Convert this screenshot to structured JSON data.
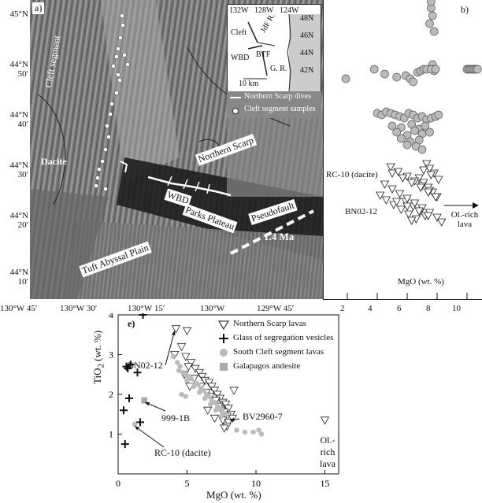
{
  "panel_a": {
    "label": "a)",
    "lat_ticks": [
      "45°N",
      "44°N 50′",
      "44°N 40′",
      "44°N 30′",
      "44°N 20′",
      "44°N 10′"
    ],
    "lon_ticks": [
      "130°W 45′",
      "130°W 30′",
      "130°W 15′",
      "130°W",
      "129°W 45′"
    ],
    "features": {
      "cleft": "Cleft segment",
      "dacite": "Dacite",
      "northern_scarp": "Northern Scarp",
      "wbd": "WBD",
      "pseudofault": "Pseudofault",
      "parks": "Parks Plateau",
      "age": "1.4 Ma",
      "tuft": "Tuft Abyssal Plain"
    },
    "inset": {
      "lon_ticks": [
        "132W",
        "128W",
        "124W"
      ],
      "lat_ticks": [
        "48N",
        "46N",
        "44N",
        "42N"
      ],
      "labels": {
        "cleft": "Cleft",
        "jdf": "JdF R.",
        "btf": "BTF",
        "wbd": "WBD",
        "gr": "G. R."
      },
      "scale": "10 km"
    },
    "legend": {
      "dives": "Northern Scarp dives",
      "samples": "Cleft segment samples"
    }
  },
  "panel_b": {
    "label": "b)",
    "xlabel": "MgO (wt. %)",
    "xticks": [
      "2",
      "4",
      "6",
      "8",
      "10"
    ],
    "annotations": {
      "rc10": "RC-10 (dacite)",
      "bn02": "BN02-12",
      "olrich": "Ol.-rich lava"
    }
  },
  "panel_e": {
    "label": "e)",
    "legend": [
      {
        "marker": "triangle",
        "text": "Northern Scarp lavas"
      },
      {
        "marker": "plus",
        "text": "Glass of segregation vesicles"
      },
      {
        "marker": "circle",
        "text": "South Cleft segment lavas"
      },
      {
        "marker": "square",
        "text": "Galapagos andesite"
      }
    ],
    "annotations": {
      "bn02": "BN02-12",
      "bv": "BV2960-7",
      "s999": "999-1B",
      "rc10": "RC-10 (dacite)",
      "olrich1": "Ol.-rich",
      "olrich2": "lava"
    }
  },
  "chart_data": [
    {
      "type": "scatter",
      "panel": "b",
      "xlabel": "MgO (wt. %)",
      "xlim": [
        1,
        11
      ],
      "series": [
        {
          "marker": "circle",
          "values_x": [
            7.6,
            7.7,
            7.5,
            7.8,
            7.6,
            7.7,
            7.7,
            7.8,
            1.9,
            3.8,
            4.5,
            5.3,
            5.9,
            6.2,
            6.4,
            6.7,
            6.9,
            7.1,
            7.3,
            7.6,
            7.9,
            10.0,
            10.1,
            10.2,
            10.3,
            10.4,
            10.5,
            10.6,
            10.7,
            4.0,
            4.3,
            4.6,
            4.9,
            5.2,
            5.5,
            5.8,
            6.1,
            6.4,
            6.7,
            7.0,
            7.3,
            7.6,
            7.9,
            8.1,
            5.0,
            5.6,
            6.3,
            6.8,
            7.2,
            5.3,
            6.0,
            6.5,
            7.0,
            7.5,
            5.6,
            6.2,
            6.8,
            6.0,
            6.6,
            7.0
          ]
        },
        {
          "marker": "triangle",
          "values_x": [
            7.3,
            7.5,
            7.8,
            6.8,
            7.1,
            7.4,
            7.7,
            8.0,
            5.9,
            6.4,
            6.9,
            7.2,
            4.9,
            5.4,
            6.0,
            6.5,
            7.0,
            7.5,
            4.2,
            4.6,
            5.1,
            5.6,
            6.1,
            6.6,
            7.1,
            7.6,
            8.1,
            4.5,
            5.0,
            5.5,
            6.0,
            6.5,
            7.0,
            7.5,
            8.0,
            8.3,
            5.0,
            5.7,
            6.3,
            6.9,
            7.4,
            7.9,
            5.3,
            6.0,
            6.8,
            7.4,
            6.3
          ]
        }
      ]
    },
    {
      "type": "scatter",
      "panel": "e",
      "xlabel": "MgO (wt. %)",
      "ylabel": "TiO2 (wt. %)",
      "xlim": [
        0,
        16
      ],
      "ylim": [
        0,
        4
      ],
      "series": [
        {
          "name": "Northern Scarp lavas",
          "marker": "triangle",
          "points": [
            [
              4.2,
              3.65
            ],
            [
              5.0,
              3.6
            ],
            [
              4.6,
              3.2
            ],
            [
              4.1,
              3.0
            ],
            [
              4.9,
              2.95
            ],
            [
              5.3,
              2.8
            ],
            [
              5.1,
              2.7
            ],
            [
              5.6,
              2.65
            ],
            [
              5.9,
              2.55
            ],
            [
              6.1,
              2.45
            ],
            [
              5.5,
              2.4
            ],
            [
              6.3,
              2.35
            ],
            [
              6.6,
              2.3
            ],
            [
              6.0,
              2.2
            ],
            [
              6.8,
              2.2
            ],
            [
              7.0,
              2.1
            ],
            [
              6.4,
              2.05
            ],
            [
              7.2,
              2.0
            ],
            [
              6.7,
              1.95
            ],
            [
              7.4,
              1.9
            ],
            [
              7.1,
              1.85
            ],
            [
              7.6,
              1.8
            ],
            [
              7.8,
              1.75
            ],
            [
              7.3,
              1.7
            ],
            [
              8.0,
              1.65
            ],
            [
              7.5,
              1.6
            ],
            [
              7.7,
              1.55
            ],
            [
              8.2,
              1.5
            ],
            [
              7.9,
              1.45
            ],
            [
              8.3,
              1.4
            ],
            [
              7.6,
              1.35
            ],
            [
              8.0,
              1.3
            ],
            [
              7.9,
              1.2
            ],
            [
              7.7,
              1.15
            ],
            [
              8.4,
              2.1
            ],
            [
              6.5,
              1.6
            ],
            [
              7.0,
              1.4
            ],
            [
              4.8,
              2.5
            ],
            [
              5.2,
              2.2
            ],
            [
              15.0,
              1.35
            ]
          ]
        },
        {
          "name": "Glass of segregation vesicles",
          "marker": "plus",
          "points": [
            [
              1.8,
              4.0
            ],
            [
              0.6,
              2.7
            ],
            [
              0.9,
              2.75
            ],
            [
              0.7,
              2.65
            ],
            [
              1.4,
              2.55
            ],
            [
              0.8,
              1.9
            ],
            [
              0.4,
              1.6
            ],
            [
              1.6,
              1.3
            ],
            [
              0.5,
              0.75
            ]
          ]
        },
        {
          "name": "South Cleft segment lavas",
          "marker": "circle",
          "points": [
            [
              4.0,
              2.95
            ],
            [
              4.3,
              2.8
            ],
            [
              4.5,
              2.7
            ],
            [
              4.4,
              2.6
            ],
            [
              4.7,
              2.55
            ],
            [
              4.9,
              2.5
            ],
            [
              5.1,
              2.45
            ],
            [
              5.3,
              2.4
            ],
            [
              5.0,
              2.35
            ],
            [
              5.6,
              2.3
            ],
            [
              5.8,
              2.25
            ],
            [
              5.5,
              2.2
            ],
            [
              6.0,
              2.15
            ],
            [
              6.2,
              2.1
            ],
            [
              5.9,
              2.05
            ],
            [
              6.4,
              2.0
            ],
            [
              6.6,
              1.95
            ],
            [
              6.3,
              1.9
            ],
            [
              6.8,
              1.85
            ],
            [
              7.0,
              1.8
            ],
            [
              6.7,
              1.75
            ],
            [
              7.2,
              1.7
            ],
            [
              7.4,
              1.65
            ],
            [
              7.1,
              1.6
            ],
            [
              7.6,
              1.55
            ],
            [
              7.8,
              1.5
            ],
            [
              7.5,
              1.45
            ],
            [
              4.6,
              2.0
            ],
            [
              4.9,
              1.95
            ],
            [
              8.6,
              1.1
            ],
            [
              9.2,
              1.05
            ],
            [
              9.8,
              1.05
            ],
            [
              10.2,
              1.1
            ],
            [
              10.4,
              1.0
            ],
            [
              1.2,
              1.25
            ]
          ]
        },
        {
          "name": "Galapagos andesite",
          "marker": "square",
          "points": [
            [
              1.9,
              1.85
            ]
          ]
        }
      ]
    }
  ]
}
